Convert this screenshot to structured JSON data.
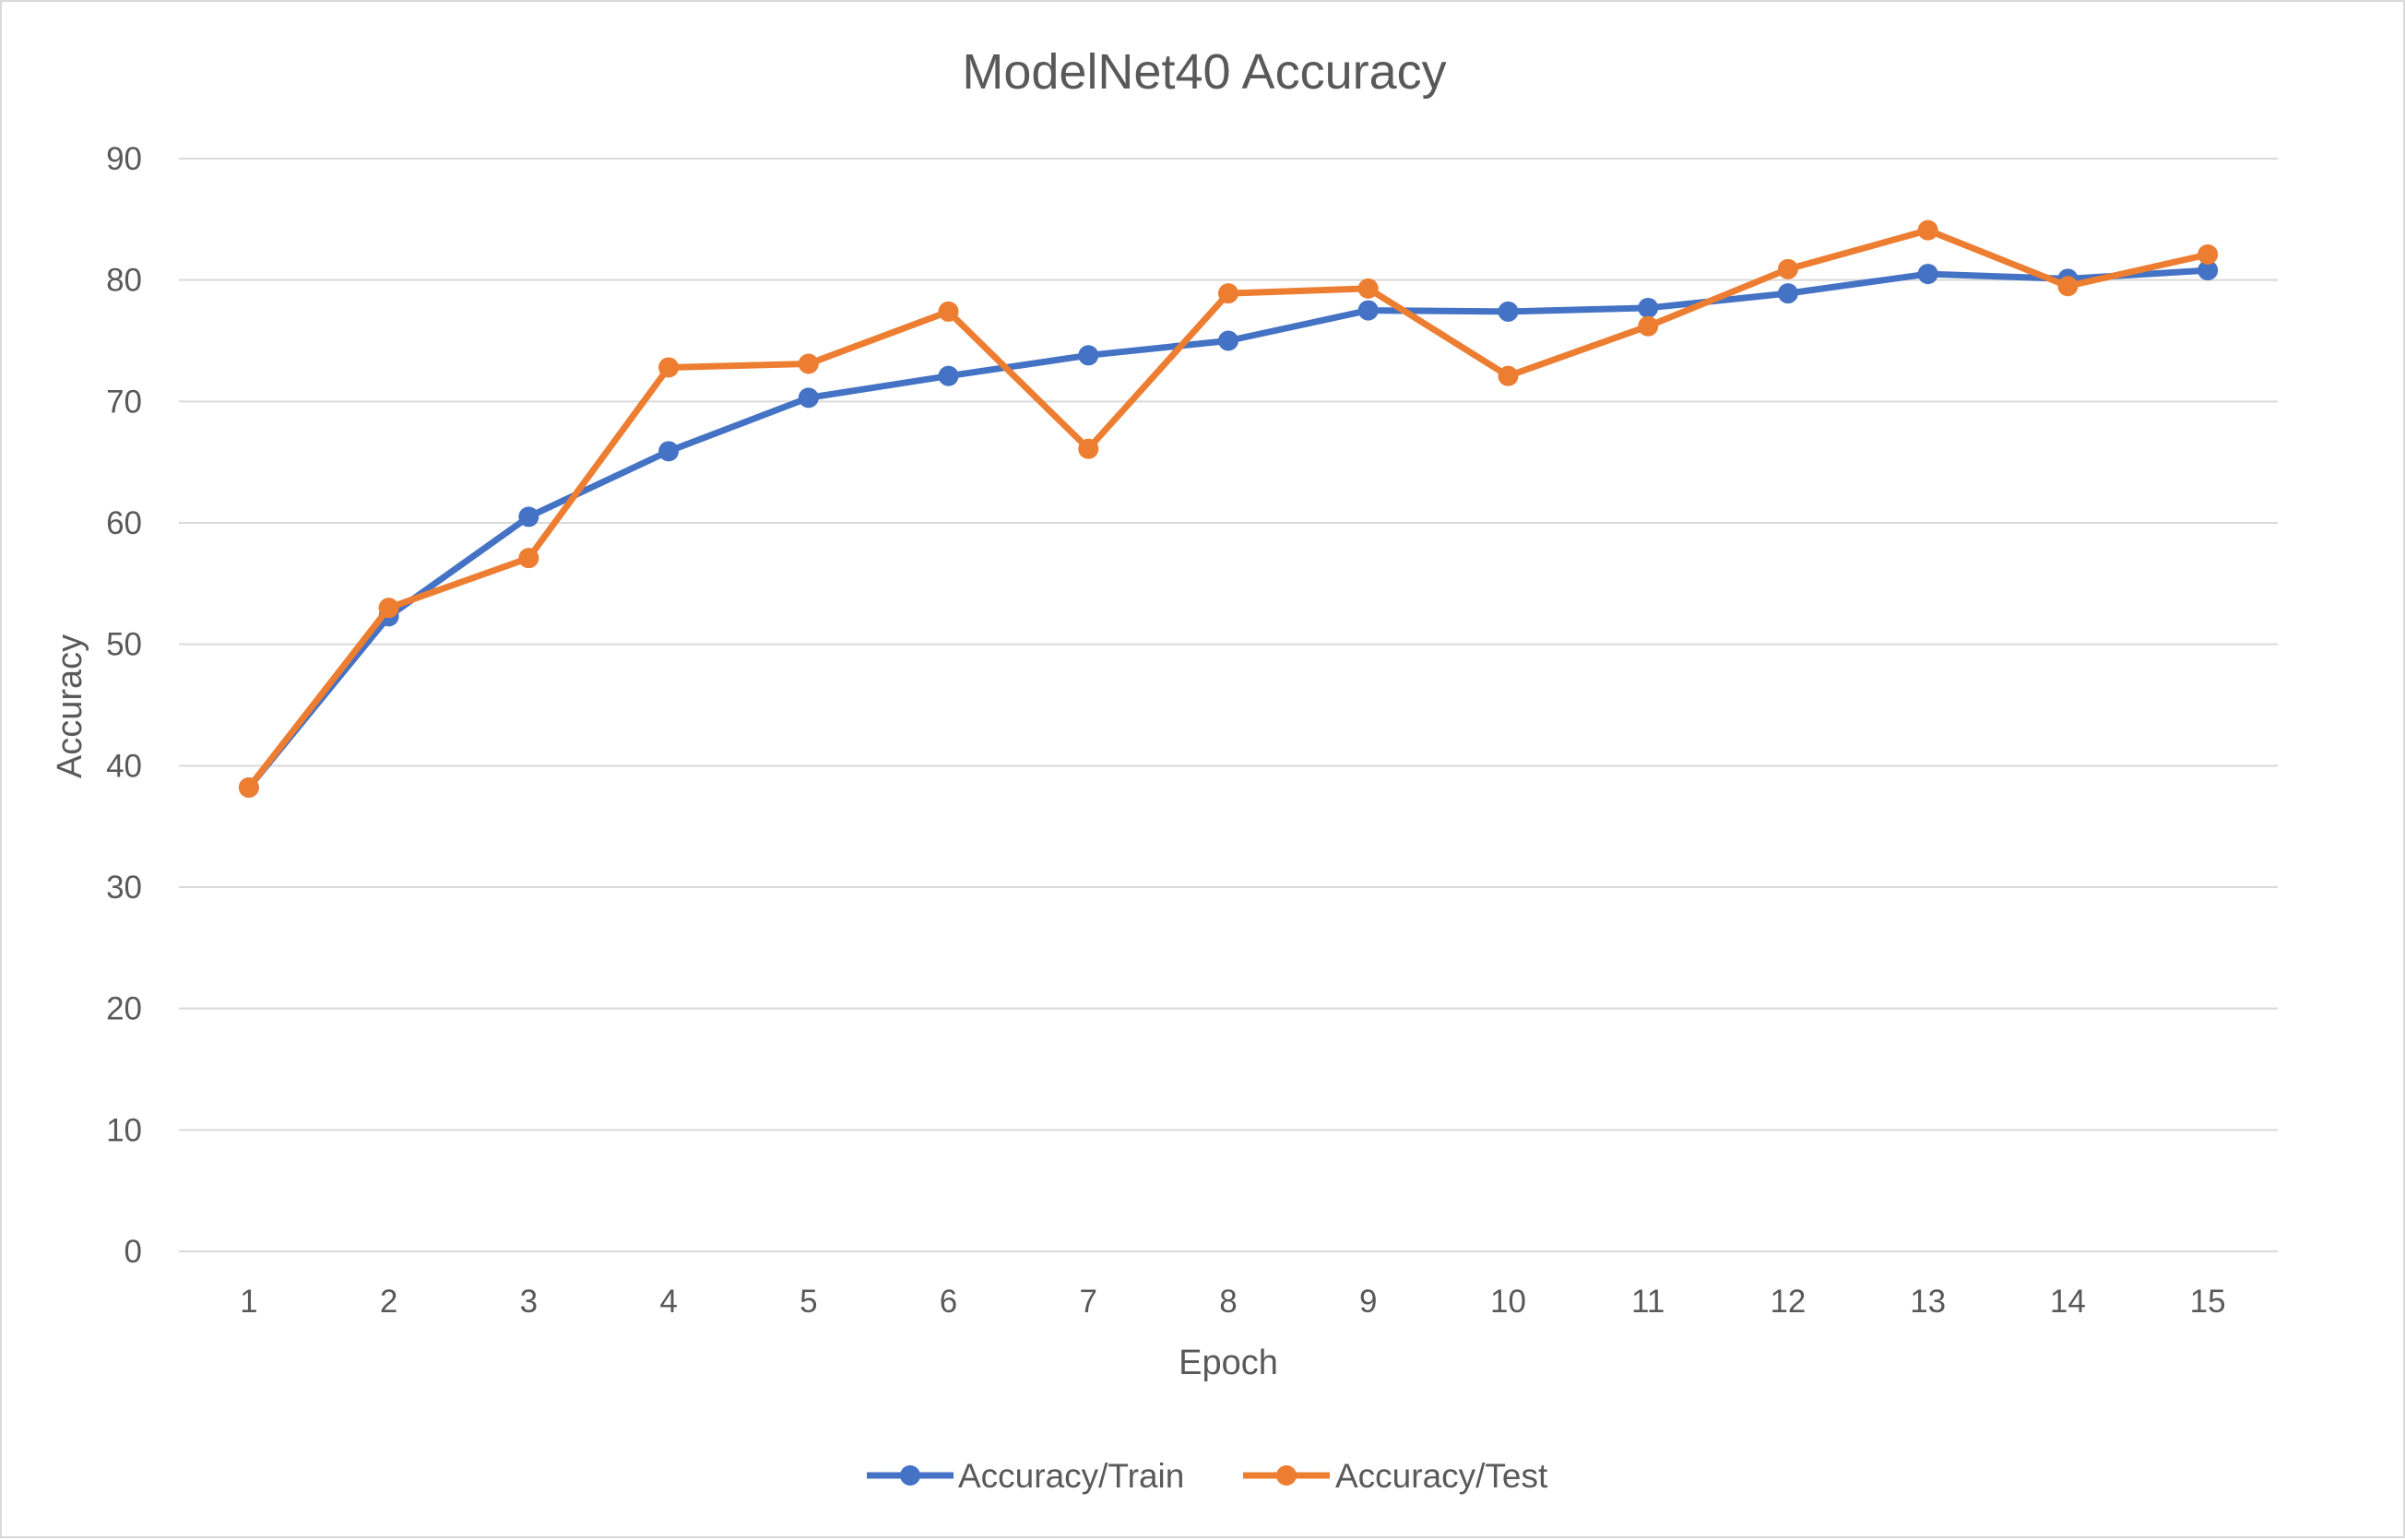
{
  "chart_data": {
    "type": "line",
    "title": "ModelNet40 Accuracy",
    "xlabel": "Epoch",
    "ylabel": "Accuracy",
    "categories": [
      "1",
      "2",
      "3",
      "4",
      "5",
      "6",
      "7",
      "8",
      "9",
      "10",
      "11",
      "12",
      "13",
      "14",
      "15"
    ],
    "ylim": [
      0,
      90
    ],
    "yticks": [
      "0",
      "10",
      "20",
      "30",
      "40",
      "50",
      "60",
      "70",
      "80",
      "90"
    ],
    "grid": true,
    "legend_position": "bottom",
    "series": [
      {
        "name": "Accuracy/Train",
        "color": "#4472C4",
        "values": [
          38.2,
          52.3,
          60.5,
          65.9,
          70.3,
          72.1,
          73.8,
          75.0,
          77.5,
          77.4,
          77.7,
          78.9,
          80.5,
          80.1,
          80.8
        ]
      },
      {
        "name": "Accuracy/Test",
        "color": "#ED7D31",
        "values": [
          38.2,
          53.0,
          57.1,
          72.8,
          73.1,
          77.4,
          66.1,
          78.9,
          79.3,
          72.1,
          76.2,
          80.9,
          84.1,
          79.5,
          82.1
        ]
      }
    ]
  }
}
